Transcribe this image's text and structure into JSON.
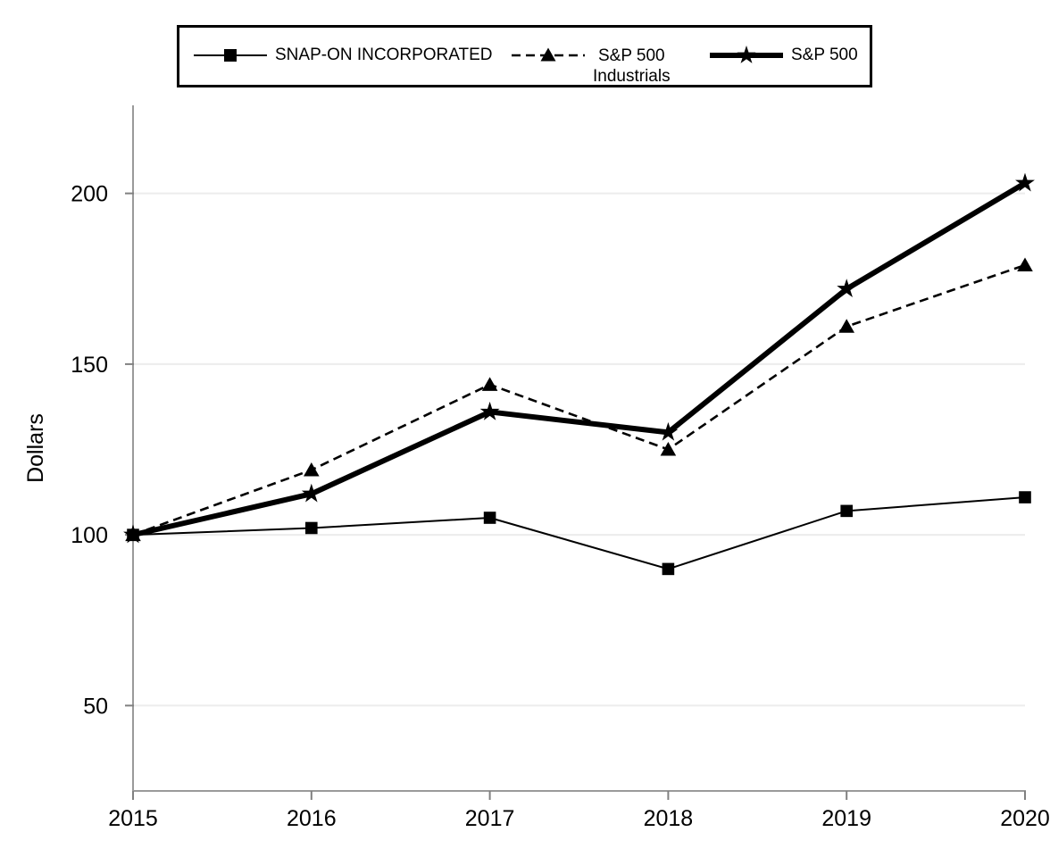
{
  "legend": {
    "items": [
      {
        "label": "SNAP-ON INCORPORATED",
        "marker": "square",
        "line": "solid-thin"
      },
      {
        "label": "S&P 500",
        "label2": "Industrials",
        "marker": "triangle",
        "line": "dashed"
      },
      {
        "label": "S&P 500",
        "marker": "star",
        "line": "solid-thick"
      }
    ]
  },
  "chart_data": {
    "type": "line",
    "categories": [
      "2015",
      "2016",
      "2017",
      "2018",
      "2019",
      "2020"
    ],
    "series": [
      {
        "name": "SNAP-ON INCORPORATED",
        "marker": "square",
        "line_style": "solid",
        "line_width": "thin",
        "values": [
          100,
          102,
          105,
          90,
          107,
          111
        ]
      },
      {
        "name": "S&P 500 Industrials",
        "marker": "triangle",
        "line_style": "dashed",
        "line_width": "medium",
        "values": [
          100,
          119,
          144,
          125,
          161,
          179
        ]
      },
      {
        "name": "S&P 500",
        "marker": "star",
        "line_style": "solid",
        "line_width": "thick",
        "values": [
          100,
          112,
          136,
          130,
          172,
          203
        ]
      }
    ],
    "title": "",
    "xlabel": "",
    "ylabel": "Dollars",
    "yticks": [
      50,
      100,
      150,
      200
    ],
    "ylim": [
      25,
      225
    ],
    "grid": true,
    "legend_position": "top",
    "colors": {
      "series": "#000000",
      "axis": "#9a9a9a",
      "tick": "#808080",
      "grid": "#ececec",
      "text": "#000000"
    }
  }
}
